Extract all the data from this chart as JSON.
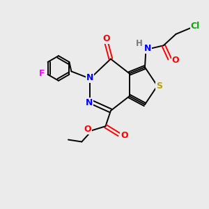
{
  "bg_color": "#ebebeb",
  "bond_color": "#000000",
  "atom_colors": {
    "N": "#0000ff",
    "O": "#ff0000",
    "S": "#b8a000",
    "F": "#ff00ff",
    "Cl": "#00aa00",
    "H": "#7a7a7a",
    "C": "#000000"
  },
  "figsize": [
    3.0,
    3.0
  ],
  "dpi": 100
}
